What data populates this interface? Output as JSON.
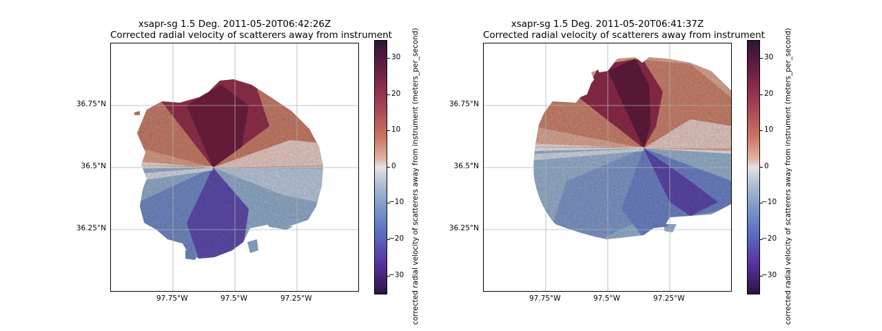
{
  "chart_data": [
    {
      "type": "heatmap",
      "title": "xsapr-sg 1.5 Deg. 2011-05-20T06:42:26Z",
      "subtitle": "Corrected radial velocity of scatterers away from instrument",
      "x_ticks": [
        "97.75°W",
        "97.5°W",
        "97.25°W"
      ],
      "x_tick_values": [
        -97.75,
        -97.5,
        -97.25
      ],
      "y_ticks": [
        "36.75°N",
        "36.5°N",
        "36.25°N"
      ],
      "y_tick_values": [
        36.75,
        36.5,
        36.25
      ],
      "xlim": [
        -98.0,
        -97.0
      ],
      "ylim": [
        36.0,
        37.0
      ],
      "radar_center": [
        -97.59,
        36.49
      ],
      "colorbar": {
        "label": "corrected radial velocity of scatterers away from instrument (meters_per_second)",
        "ticks": [
          "30",
          "20",
          "10",
          "0",
          "−10",
          "−20",
          "−30"
        ],
        "tick_values": [
          30,
          20,
          10,
          0,
          -10,
          -20,
          -30
        ],
        "range": [
          -35,
          35
        ],
        "colormap": "twilight_shifted"
      },
      "grid": true
    },
    {
      "type": "heatmap",
      "title": "xsapr-sg 1.5 Deg. 2011-05-20T06:41:37Z",
      "subtitle": "Corrected radial velocity of scatterers away from instrument",
      "x_ticks": [
        "97.75°W",
        "97.5°W",
        "97.25°W"
      ],
      "x_tick_values": [
        -97.75,
        -97.5,
        -97.25
      ],
      "y_ticks": [
        "36.75°N",
        "36.5°N",
        "36.25°N"
      ],
      "y_tick_values": [
        36.75,
        36.5,
        36.25
      ],
      "xlim": [
        -98.0,
        -97.0
      ],
      "ylim": [
        36.0,
        37.0
      ],
      "radar_center": [
        -97.37,
        36.58
      ],
      "colorbar": {
        "label": "corrected radial velocity of scatterers away from instrument (meters_per_second)",
        "ticks": [
          "30",
          "20",
          "10",
          "0",
          "−10",
          "−20",
          "−30"
        ],
        "tick_values": [
          30,
          20,
          10,
          0,
          -10,
          -20,
          -30
        ],
        "range": [
          -35,
          35
        ],
        "colormap": "twilight_shifted"
      },
      "grid": true
    }
  ]
}
